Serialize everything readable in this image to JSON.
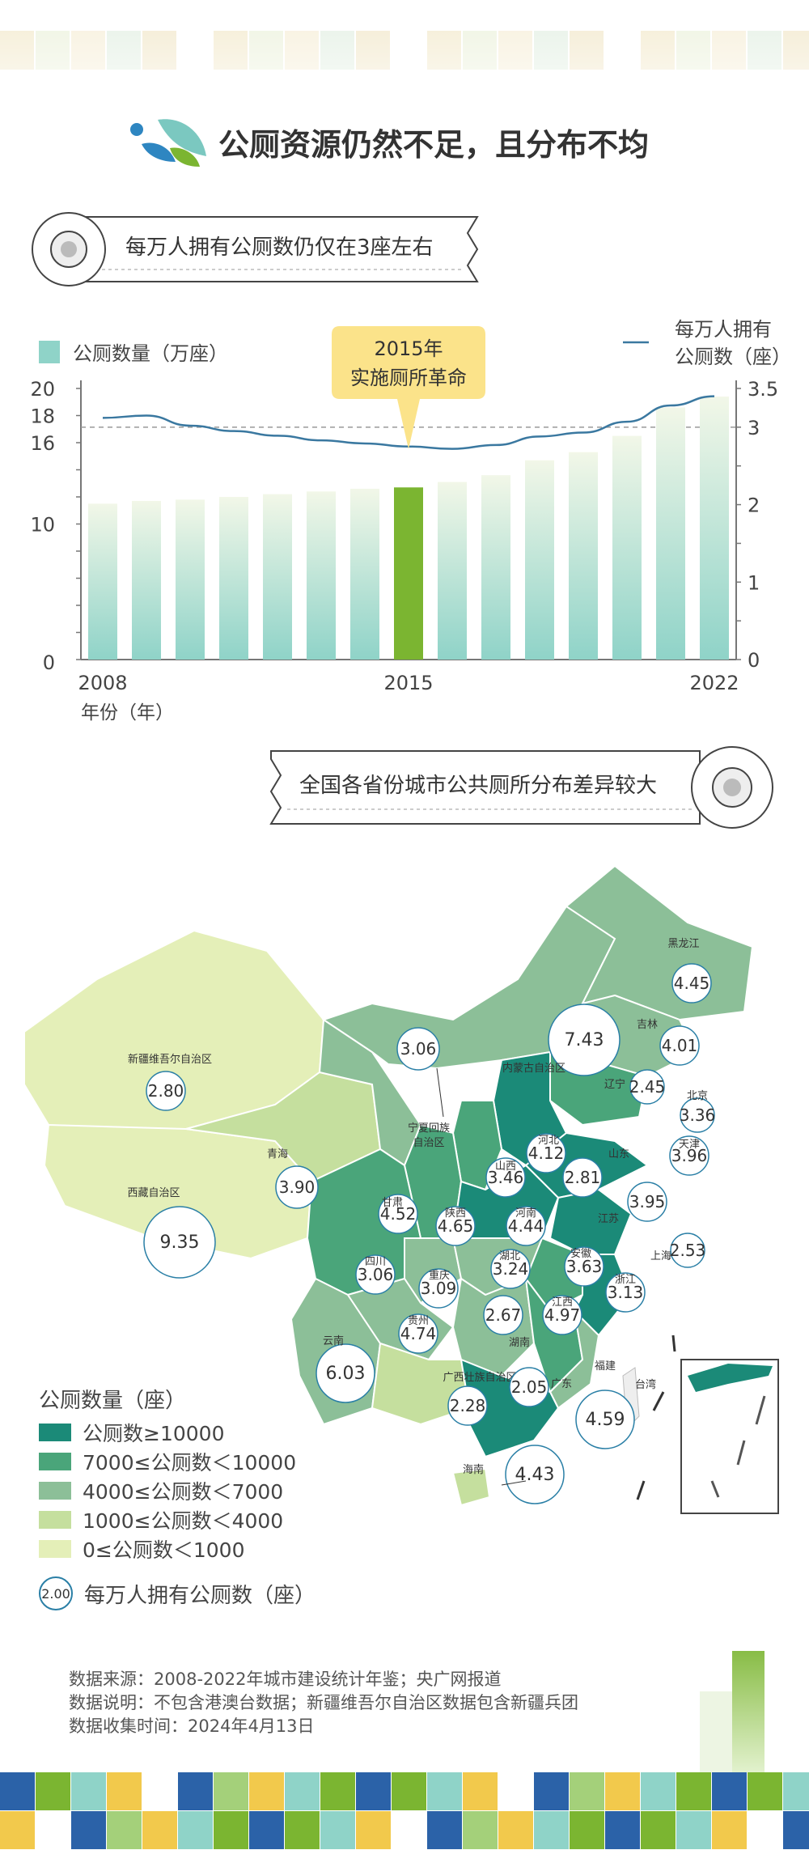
{
  "title": "公厕资源仍然不足，且分布不均",
  "banner1": "每万人拥有公厕数仍仅在3座左右",
  "banner2": "全国各省份城市公共厕所分布差异较大",
  "callout": {
    "line1": "2015年",
    "line2": "实施厕所革命"
  },
  "colors": {
    "bar": "#8fd3c8",
    "highlight": "#7bb531",
    "line": "#3a78a0",
    "dark_teal": "#1b8a78",
    "mid_green": "#4aa57a",
    "sage": "#8cbf98",
    "light_green": "#c5df9e",
    "pale": "#e4efb8"
  },
  "chart_data": {
    "type": "bar+line",
    "legend_bar": "公厕数量（万座）",
    "legend_line": [
      "每万人拥有",
      "公厕数（座）"
    ],
    "xlabel": "年份（年）",
    "x": [
      2008,
      2009,
      2010,
      2011,
      2012,
      2013,
      2014,
      2015,
      2016,
      2017,
      2018,
      2019,
      2020,
      2021,
      2022
    ],
    "x_ticks": [
      "2008",
      "2015",
      "2022"
    ],
    "y_left_ticks": [
      "20",
      "18",
      "16",
      "10",
      "0"
    ],
    "y_right_ticks": [
      "3.5",
      "3",
      "2",
      "1",
      "0"
    ],
    "left_ylim": [
      0,
      20
    ],
    "right_ylim": [
      0,
      3.5
    ],
    "highlight_year": 2015,
    "series": [
      {
        "name": "公厕数量（万座）",
        "type": "bar",
        "values": [
          11.5,
          11.7,
          11.8,
          12.0,
          12.2,
          12.4,
          12.6,
          12.7,
          13.1,
          13.6,
          14.7,
          15.3,
          16.5,
          18.6,
          19.4
        ]
      },
      {
        "name": "每万人拥有公厕数（座）",
        "type": "line",
        "values": [
          3.12,
          3.15,
          3.02,
          2.95,
          2.89,
          2.83,
          2.79,
          2.75,
          2.72,
          2.77,
          2.88,
          2.93,
          3.07,
          3.28,
          3.4
        ]
      }
    ],
    "reference_line": 3
  },
  "map": {
    "legend_title": "公厕数量（座）",
    "legend_items": [
      "公厕数≥10000",
      "7000≤公厕数＜10000",
      "4000≤公厕数＜7000",
      "1000≤公厕数＜4000",
      "0≤公厕数＜1000"
    ],
    "legend_colors": [
      "#1b8a78",
      "#4aa57a",
      "#8cbf98",
      "#c5df9e",
      "#e4efb8"
    ],
    "circle_legend_value": "2.00",
    "circle_legend_label": "每万人拥有公厕数（座）",
    "provinces": [
      {
        "name": "黑龙江",
        "value": "4.45"
      },
      {
        "name": "吉林",
        "value": "4.01"
      },
      {
        "name": "辽宁",
        "value": "2.45"
      },
      {
        "name": "内蒙古自治区",
        "value": "7.43"
      },
      {
        "name": "新疆维吾尔自治区",
        "value": "2.80"
      },
      {
        "name": "宁夏回族自治区",
        "value": "3.06"
      },
      {
        "name": "北京",
        "value": "3.36"
      },
      {
        "name": "天津",
        "value": "3.96"
      },
      {
        "name": "河北",
        "value": "4.12"
      },
      {
        "name": "山西",
        "value": "3.46"
      },
      {
        "name": "山东",
        "value": "2.81"
      },
      {
        "name": "江苏",
        "value": "3.95"
      },
      {
        "name": "青海",
        "value": "3.90"
      },
      {
        "name": "西藏自治区",
        "value": "9.35"
      },
      {
        "name": "甘肃",
        "value": "4.52"
      },
      {
        "name": "陕西",
        "value": "4.65"
      },
      {
        "name": "河南",
        "value": "4.44"
      },
      {
        "name": "上海",
        "value": "2.53"
      },
      {
        "name": "四川",
        "value": "3.06"
      },
      {
        "name": "湖北",
        "value": "3.24"
      },
      {
        "name": "安徽",
        "value": "3.63"
      },
      {
        "name": "重庆",
        "value": "3.09"
      },
      {
        "name": "浙江",
        "value": "3.13"
      },
      {
        "name": "湖南",
        "value": "2.67"
      },
      {
        "name": "江西",
        "value": "4.97"
      },
      {
        "name": "贵州",
        "value": "4.74"
      },
      {
        "name": "云南",
        "value": "6.03"
      },
      {
        "name": "广西壮族自治区",
        "value": "2.28"
      },
      {
        "name": "广东",
        "value": "2.05"
      },
      {
        "name": "福建",
        "value": "4.59"
      },
      {
        "name": "海南",
        "value": "4.43"
      },
      {
        "name": "台湾",
        "value": ""
      }
    ]
  },
  "source": {
    "line1": "数据来源：2008-2022年城市建设统计年鉴；央广网报道",
    "line2": "数据说明：不包含港澳台数据；新疆维吾尔自治区数据包含新疆兵团",
    "line3": "数据收集时间：2024年4月13日"
  }
}
